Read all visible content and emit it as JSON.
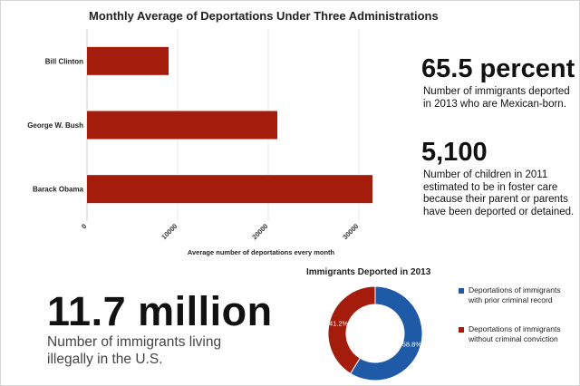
{
  "chart_data": [
    {
      "type": "bar",
      "orientation": "horizontal",
      "title": "Monthly Average of Deportations Under Three Administrations",
      "categories": [
        "Bill Clinton",
        "George W. Bush",
        "Barack Obama"
      ],
      "values": [
        9000,
        21000,
        31500
      ],
      "xlabel": "Average number of deportations every month",
      "ylabel": "",
      "xlim": [
        0,
        35000
      ],
      "ticks": [
        "0",
        "10000",
        "20000",
        "30000"
      ],
      "tick_values": [
        0,
        10000,
        20000,
        30000
      ],
      "grid": true,
      "color": "#a41d0c"
    },
    {
      "type": "pie",
      "style": "donut",
      "title": "Immigrants Deported in 2013",
      "labels": [
        "Deportations of immigrants with prior criminal record",
        "Deportations of immigrants without criminal conviction"
      ],
      "values": [
        58.8,
        41.2
      ],
      "value_labels": [
        "58.8%",
        "41.2%"
      ],
      "colors": [
        "#1f5aa6",
        "#a41d0c"
      ]
    }
  ],
  "stats": [
    {
      "value": "65.5 percent",
      "description": "Number of immigrants deported in 2013 who are Mexican-born."
    },
    {
      "value": "5,100",
      "description": "Number of children in 2011 estimated to be in foster care because their parent or parents have been deported or detained."
    },
    {
      "value": "11.7 million",
      "description": "Number of immigrants living illegally in the U.S."
    }
  ]
}
